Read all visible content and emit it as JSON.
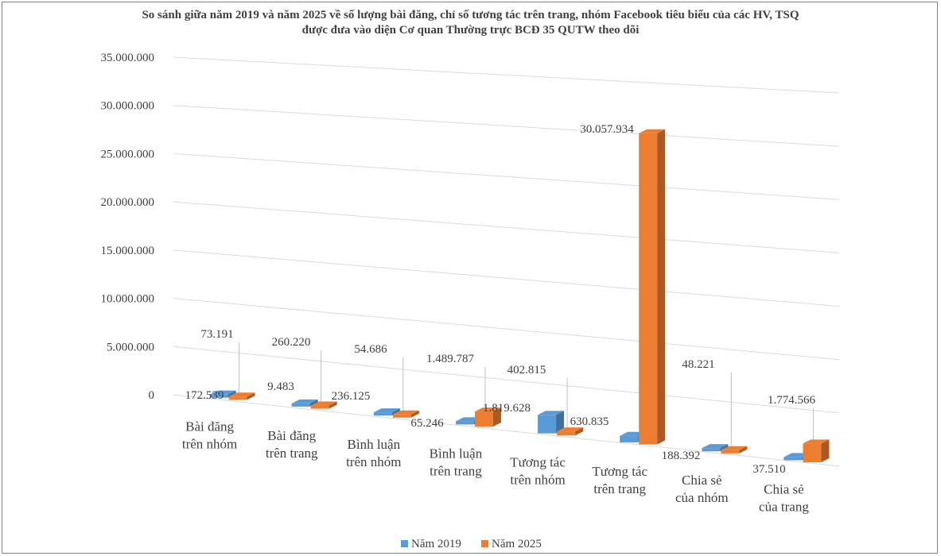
{
  "chart_data": {
    "type": "bar",
    "title": [
      "So sánh giữa năm 2019 và năm 2025 về số lượng bài đăng, chỉ số tương tác trên trang, nhóm Facebook tiêu biểu của các HV, TSQ",
      "được đưa vào diện Cơ quan Thường trực BCĐ 35 QUTW theo  dõi"
    ],
    "categories": [
      [
        "Bài đăng",
        "trên nhóm"
      ],
      [
        "Bài đăng",
        "trên trang"
      ],
      [
        "Bình luận",
        "trên nhóm"
      ],
      [
        "Bình luận",
        "trên trang"
      ],
      [
        "Tương tác",
        "trên nhóm"
      ],
      [
        "Tương tác",
        "trên trang"
      ],
      [
        "Chia sẻ",
        "của nhóm"
      ],
      [
        "Chia sẻ",
        "của trang"
      ]
    ],
    "series": [
      {
        "name": "Năm 2019",
        "color": "#5b9bd5",
        "values": [
          172539,
          9483,
          236125,
          65246,
          1819628,
          630835,
          188392,
          37510
        ],
        "labels": [
          "172.539",
          "9.483",
          "236.125",
          "65.246",
          "1.819.628",
          "630.835",
          "188.392",
          "37.510"
        ]
      },
      {
        "name": "Năm 2025",
        "color": "#ed7d31",
        "values": [
          73191,
          260220,
          54686,
          1489787,
          402815,
          30057934,
          48221,
          1774566
        ],
        "labels": [
          "73.191",
          "260.220",
          "54.686",
          "1.489.787",
          "402.815",
          "30.057.934",
          "48.221",
          "1.774.566"
        ]
      }
    ],
    "ylim": [
      0,
      35000000
    ],
    "y_ticks": [
      "0",
      "5.000.000",
      "10.000.000",
      "15.000.000",
      "20.000.000",
      "25.000.000",
      "30.000.000",
      "35.000.000"
    ],
    "grid": true,
    "legend_position": "bottom",
    "perspective": "3d"
  }
}
